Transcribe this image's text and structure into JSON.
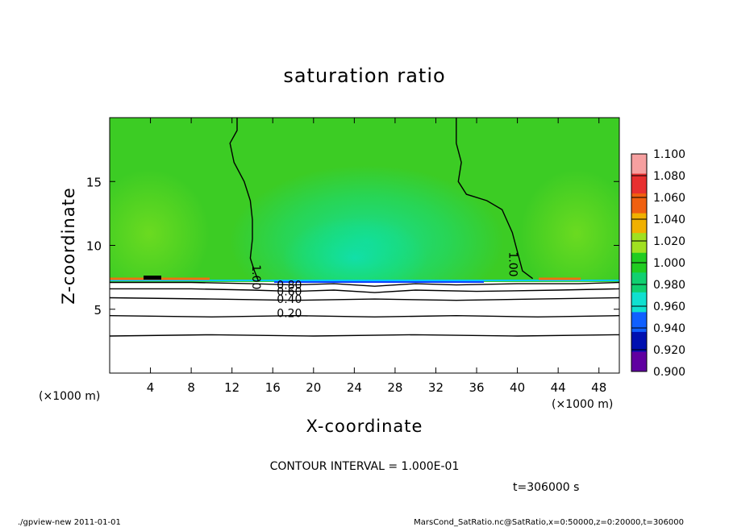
{
  "chart_data": {
    "type": "heatmap",
    "title": "saturation ratio",
    "xlabel": "X-coordinate",
    "ylabel": "Z-coordinate",
    "x_unit": "(×1000 m)",
    "y_unit": "(×1000 m)",
    "xlim": [
      0,
      50
    ],
    "ylim": [
      0,
      20
    ],
    "x_ticks": [
      "4",
      "8",
      "12",
      "16",
      "20",
      "24",
      "28",
      "32",
      "36",
      "40",
      "44",
      "48"
    ],
    "y_ticks": [
      "5",
      "10",
      "15"
    ],
    "contour_interval_text": "CONTOUR INTERVAL = 1.000E-01",
    "time_text": "t=306000 s",
    "contour_labels": [
      "1.00",
      "1.00",
      "0.80",
      "0.60",
      "0.40",
      "0.20"
    ],
    "colorbar": {
      "levels": [
        "1.100",
        "1.080",
        "1.060",
        "1.040",
        "1.020",
        "1.000",
        "0.980",
        "0.960",
        "0.940",
        "0.920",
        "0.900"
      ],
      "colors": [
        "#f6a0a0",
        "#e83030",
        "#f06010",
        "#f0b000",
        "#a0e020",
        "#20cc20",
        "#10d070",
        "#10e0d0",
        "#1060ff",
        "#0010b0",
        "#6000a0"
      ]
    },
    "contours": [
      {
        "level": 1.0,
        "points": [
          [
            12.5,
            20
          ],
          [
            12.5,
            19.0
          ],
          [
            11.8,
            18.0
          ],
          [
            12.2,
            16.5
          ],
          [
            13.2,
            15.0
          ],
          [
            13.8,
            13.5
          ],
          [
            14.0,
            12.0
          ],
          [
            14.0,
            10.5
          ],
          [
            13.8,
            9.0
          ],
          [
            14.2,
            8.0
          ],
          [
            14.6,
            7.2
          ]
        ]
      },
      {
        "level": 1.0,
        "points": [
          [
            34.0,
            20
          ],
          [
            34.0,
            18.0
          ],
          [
            34.5,
            16.5
          ],
          [
            34.2,
            15.0
          ],
          [
            35.0,
            14.0
          ],
          [
            37.0,
            13.5
          ],
          [
            38.5,
            12.8
          ],
          [
            39.5,
            11.0
          ],
          [
            40.0,
            9.5
          ],
          [
            40.5,
            8.0
          ],
          [
            41.5,
            7.4
          ]
        ]
      },
      {
        "level": 0.8,
        "points": [
          [
            0,
            7.1
          ],
          [
            8,
            7.1
          ],
          [
            14,
            7.0
          ],
          [
            18,
            6.9
          ],
          [
            22,
            7.0
          ],
          [
            26,
            6.8
          ],
          [
            30,
            7.0
          ],
          [
            34,
            6.9
          ],
          [
            40,
            7.0
          ],
          [
            46,
            7.0
          ],
          [
            50,
            7.1
          ]
        ]
      },
      {
        "level": 0.6,
        "points": [
          [
            0,
            6.6
          ],
          [
            8,
            6.6
          ],
          [
            14,
            6.5
          ],
          [
            18,
            6.4
          ],
          [
            22,
            6.5
          ],
          [
            26,
            6.3
          ],
          [
            30,
            6.5
          ],
          [
            36,
            6.4
          ],
          [
            44,
            6.5
          ],
          [
            50,
            6.6
          ]
        ]
      },
      {
        "level": 0.4,
        "points": [
          [
            0,
            5.9
          ],
          [
            10,
            5.8
          ],
          [
            18,
            5.7
          ],
          [
            26,
            5.8
          ],
          [
            34,
            5.7
          ],
          [
            42,
            5.8
          ],
          [
            50,
            5.9
          ]
        ]
      },
      {
        "level": 0.2,
        "points": [
          [
            0,
            4.5
          ],
          [
            10,
            4.4
          ],
          [
            18,
            4.5
          ],
          [
            26,
            4.4
          ],
          [
            34,
            4.5
          ],
          [
            42,
            4.4
          ],
          [
            50,
            4.5
          ]
        ]
      },
      {
        "level": 0.1,
        "points": [
          [
            0,
            2.9
          ],
          [
            10,
            3.0
          ],
          [
            20,
            2.9
          ],
          [
            30,
            3.0
          ],
          [
            40,
            2.9
          ],
          [
            50,
            3.0
          ]
        ]
      }
    ]
  },
  "footer": {
    "left": "./gpview-new   2011-01-01",
    "right": "MarsCond_SatRatio.nc@SatRatio,x=0:50000,z=0:20000,t=306000"
  }
}
